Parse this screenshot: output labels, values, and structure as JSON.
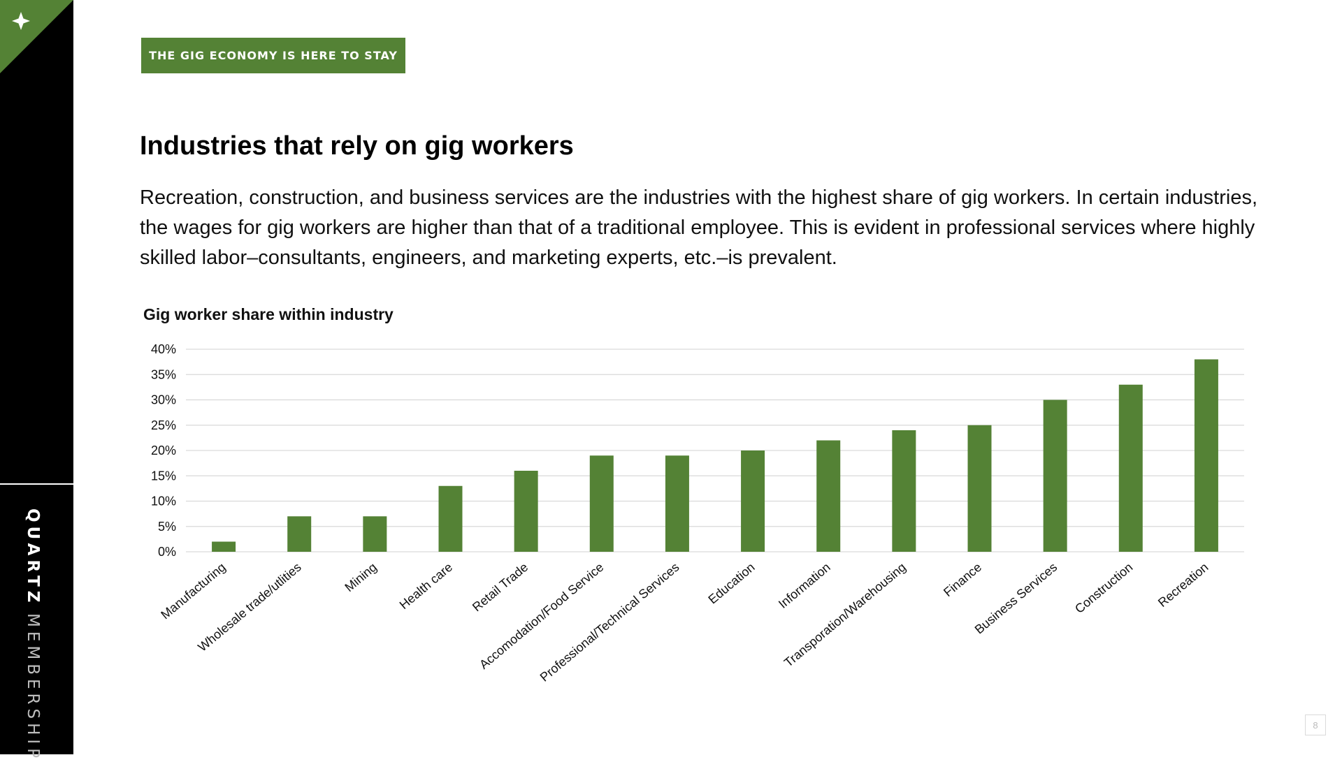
{
  "sidebar": {
    "brand_strong": "QUARTZ",
    "brand_light": "MEMBERSHIP",
    "corner_icon": "sparkle-icon",
    "background": "#000000"
  },
  "tag": {
    "label": "THE GIG ECONOMY IS HERE TO STAY"
  },
  "heading": "Industries that rely on gig workers",
  "body": "Recreation, construction, and business services are the industries with the highest share of gig workers. In certain industries, the wages for gig workers are higher than that of a traditional employee. This is evident in professional services where highly skilled labor–consultants, engineers, and marketing experts, etc.–is prevalent.",
  "page_number": "8",
  "colors": {
    "accent": "#548235",
    "bar": "#548235",
    "grid": "#d9d9d9"
  },
  "chart_data": {
    "type": "bar",
    "title": "Gig worker share within industry",
    "xlabel": "",
    "ylabel": "",
    "categories": [
      "Manufacturing",
      "Wholesale trade/utlities",
      "Mining",
      "Health care",
      "Retail Trade",
      "Accomodation/Food Service",
      "Professional/Technical Services",
      "Education",
      "Information",
      "Transporation/Warehousing",
      "Finance",
      "Business Services",
      "Construction",
      "Recreation"
    ],
    "values": [
      2,
      7,
      7,
      13,
      16,
      19,
      19,
      20,
      22,
      24,
      25,
      30,
      33,
      38
    ],
    "yticks": [
      "0%",
      "5%",
      "10%",
      "15%",
      "20%",
      "25%",
      "30%",
      "35%",
      "40%"
    ],
    "ylim": [
      0,
      40
    ],
    "grid": true,
    "legend": "none"
  }
}
